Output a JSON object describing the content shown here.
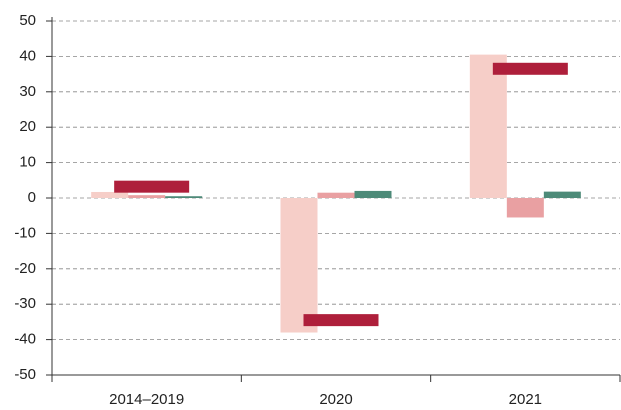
{
  "chart_data": {
    "type": "bar",
    "categories": [
      "2014–2019",
      "2020",
      "2021"
    ],
    "series": [
      {
        "color": "#f6cec8",
        "values": [
          1.7,
          -38,
          40.5
        ]
      },
      {
        "color": "#e9a0a2",
        "values": [
          0.8,
          1.5,
          -5.5
        ]
      },
      {
        "color": "#4d8a78",
        "values": [
          0.5,
          2,
          1.8
        ]
      },
      {
        "color": "#ae1f3b",
        "style": "marker",
        "values": [
          3.2,
          -34.5,
          36.5
        ]
      }
    ],
    "ylim": [
      -50,
      50
    ],
    "yticks": [
      -50,
      -40,
      -30,
      -20,
      -10,
      0,
      10,
      20,
      30,
      40,
      50
    ],
    "grid": true
  }
}
